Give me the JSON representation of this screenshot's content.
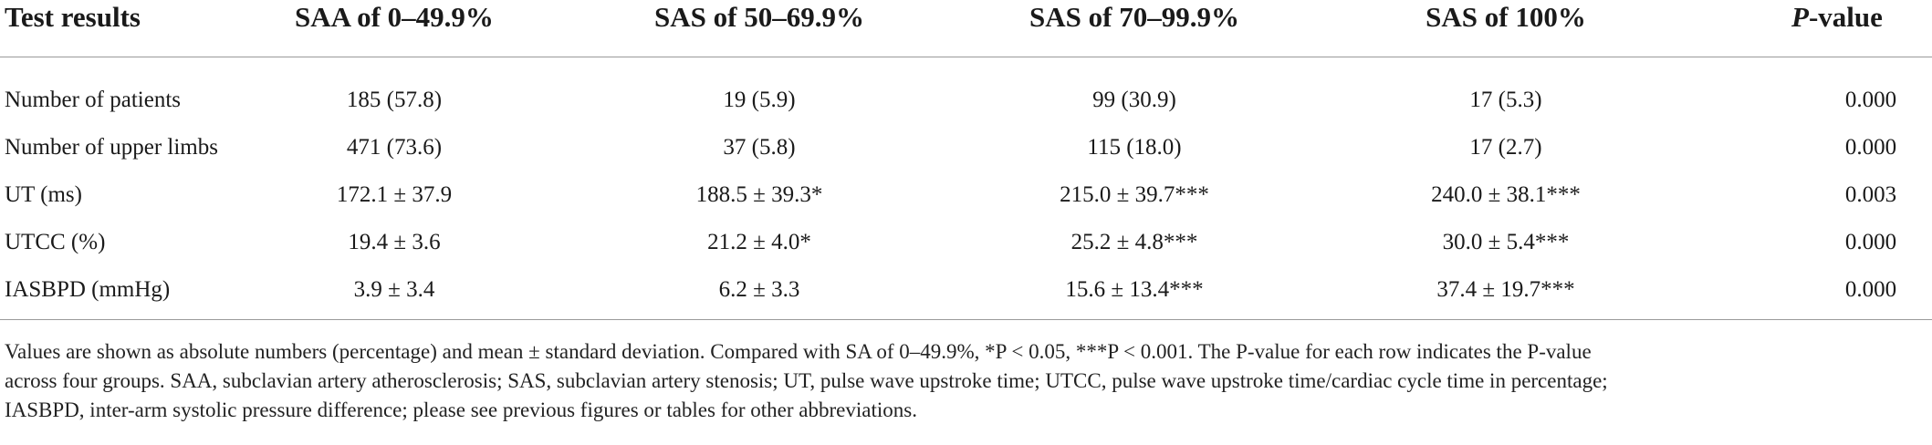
{
  "table": {
    "headers": {
      "test_results": "Test results",
      "col1": "SAA of 0–49.9%",
      "col2": "SAS of 50–69.9%",
      "col3": "SAS of 70–99.9%",
      "col4": "SAS of 100%",
      "pvalue_italic": "P",
      "pvalue_rest": "-value"
    },
    "rows": [
      {
        "label": "Number of patients",
        "c1": "185 (57.8)",
        "c2": "19 (5.9)",
        "c3": "99 (30.9)",
        "c4": "17 (5.3)",
        "p": "0.000"
      },
      {
        "label": "Number of upper limbs",
        "c1": "471 (73.6)",
        "c2": "37 (5.8)",
        "c3": "115 (18.0)",
        "c4": "17 (2.7)",
        "p": "0.000"
      },
      {
        "label": "UT (ms)",
        "c1": "172.1 ± 37.9",
        "c2": "188.5 ± 39.3*",
        "c3": "215.0 ± 39.7***",
        "c4": "240.0 ± 38.1***",
        "p": "0.003"
      },
      {
        "label": "UTCC (%)",
        "c1": "19.4 ± 3.6",
        "c2": "21.2 ± 4.0*",
        "c3": "25.2 ± 4.8***",
        "c4": "30.0 ± 5.4***",
        "p": "0.000"
      },
      {
        "label": "IASBPD (mmHg)",
        "c1": "3.9 ± 3.4",
        "c2": "6.2 ± 3.3",
        "c3": "15.6 ± 13.4***",
        "c4": "37.4 ± 19.7***",
        "p": "0.000"
      }
    ]
  },
  "footnote": {
    "line1": "Values are shown as absolute numbers (percentage) and mean ± standard deviation. Compared with SA of 0–49.9%, *P < 0.05, ***P < 0.001. The P-value for each row indicates the P-value",
    "line2": "across four groups. SAA, subclavian artery atherosclerosis; SAS, subclavian artery stenosis; UT, pulse wave upstroke time; UTCC, pulse wave upstroke time/cardiac cycle time in percentage;",
    "line3": "IASBPD, inter-arm systolic pressure difference; please see previous figures or tables for other abbreviations."
  }
}
